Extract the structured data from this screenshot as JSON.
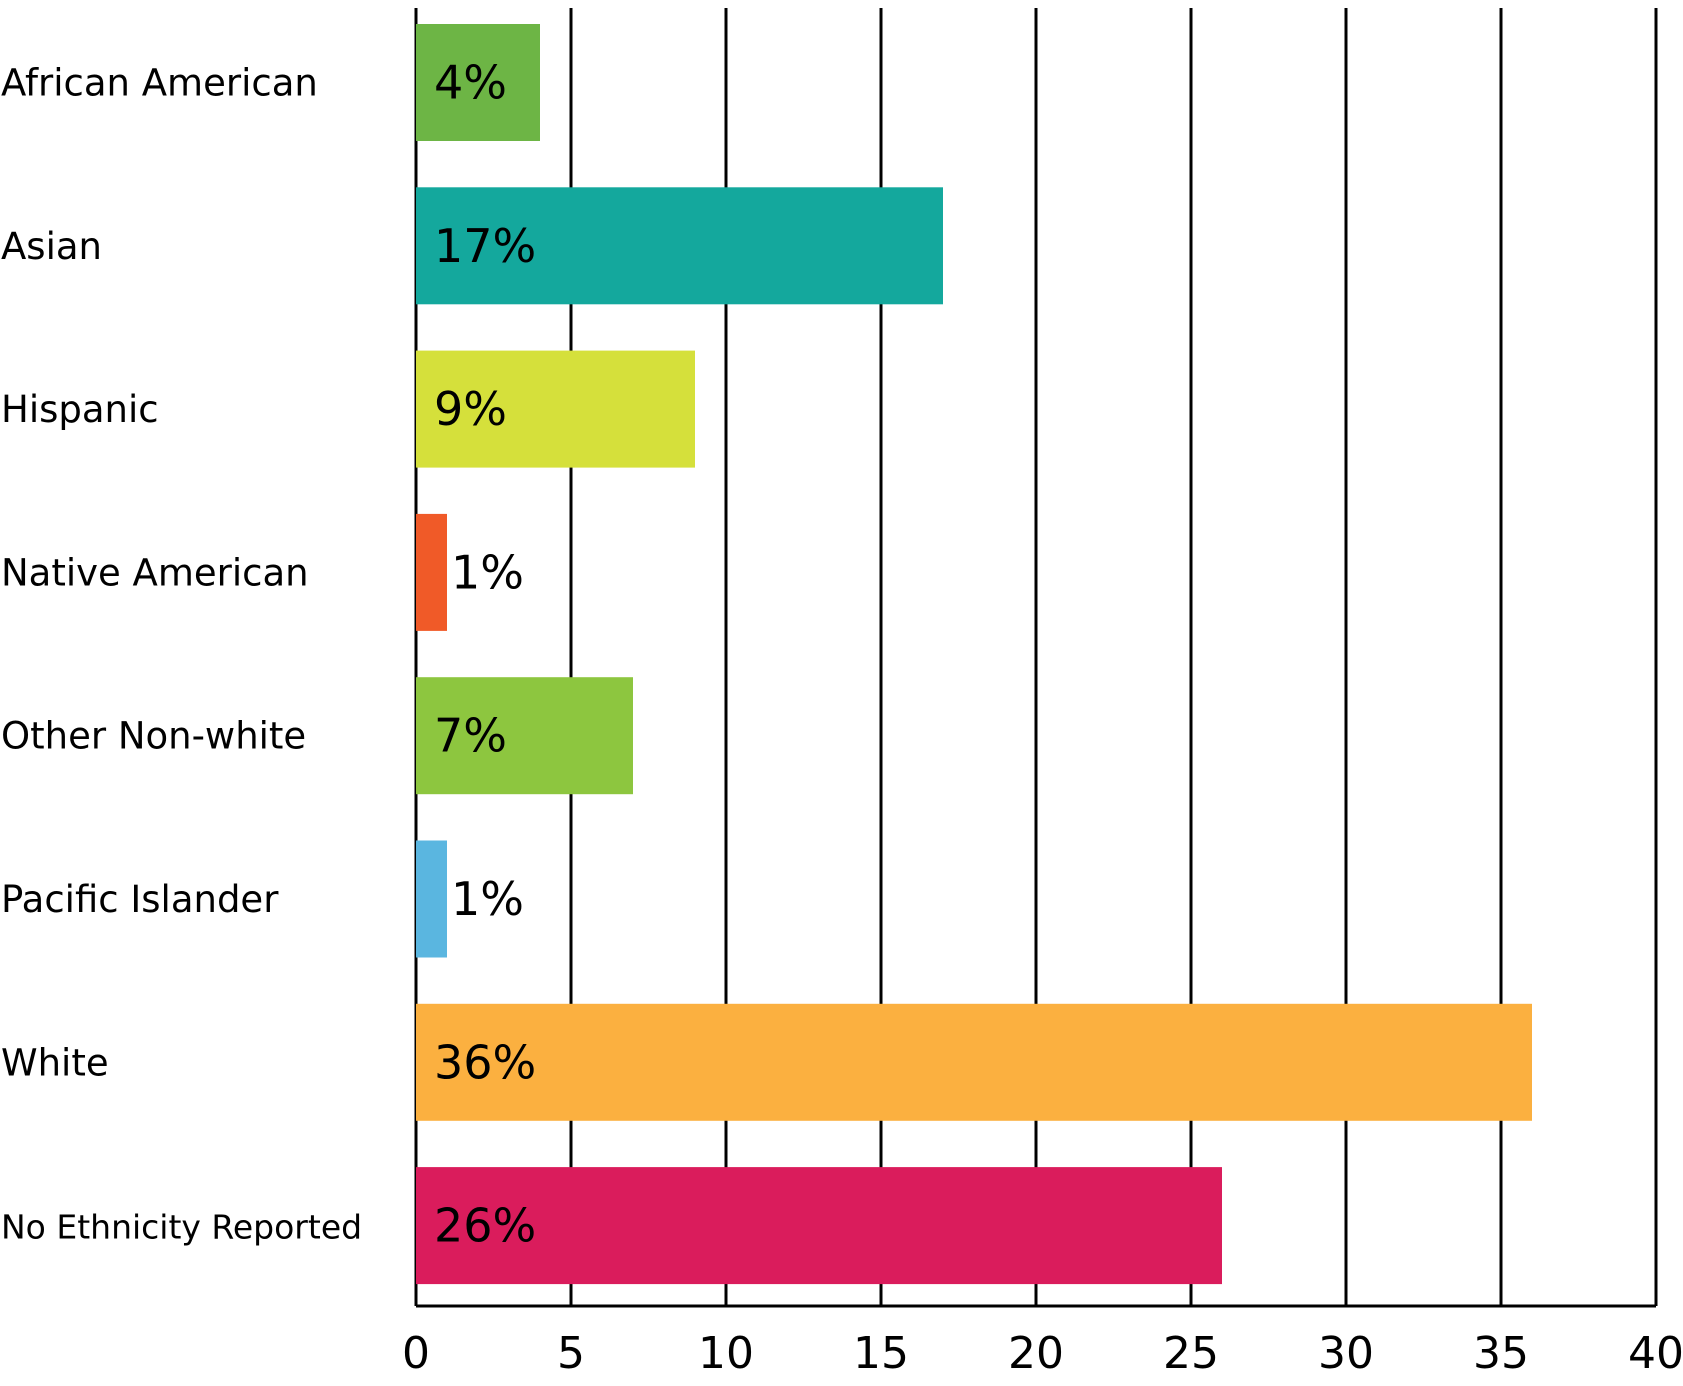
{
  "chart_data": {
    "type": "bar",
    "orientation": "horizontal",
    "categories": [
      "African American",
      "Asian",
      "Hispanic",
      "Native American",
      "Other Non-white",
      "Pacific Islander",
      "White",
      "No Ethnicity Reported"
    ],
    "values": [
      4,
      17,
      9,
      1,
      7,
      1,
      36,
      26
    ],
    "data_labels": [
      "4%",
      "17%",
      "9%",
      "1%",
      "7%",
      "1%",
      "36%",
      "26%"
    ],
    "colors": [
      "#6db545",
      "#14a89d",
      "#d5e03b",
      "#f05a28",
      "#8dc63f",
      "#5ab6e0",
      "#fbb040",
      "#da1c5c"
    ],
    "xlim": [
      0,
      40
    ],
    "xticks": [
      0,
      5,
      10,
      15,
      20,
      25,
      30,
      35,
      40
    ],
    "grid": "vertical",
    "legend": "none",
    "title": "",
    "xlabel": "",
    "ylabel": ""
  }
}
